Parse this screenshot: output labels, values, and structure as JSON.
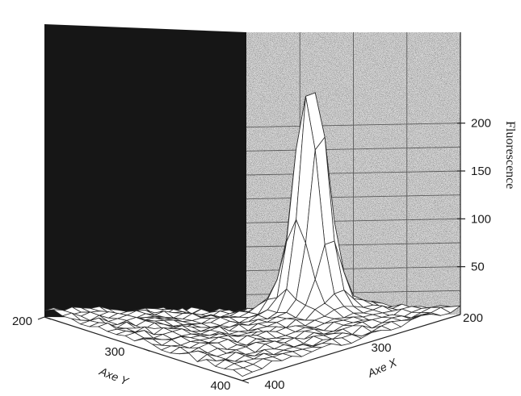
{
  "chart_data": {
    "type": "surface3d",
    "xlabel": "Axe X",
    "ylabel": "Axe Y",
    "zlabel": "Fluorescence",
    "x_ticks": [
      "200",
      "300",
      "400"
    ],
    "y_ticks": [
      "200",
      "300",
      "400"
    ],
    "z_ticks": [
      "50",
      "100",
      "150",
      "200"
    ],
    "xlim": [
      200,
      400
    ],
    "ylim": [
      200,
      400
    ],
    "zlim": [
      0,
      220
    ],
    "grid": true,
    "peak": {
      "x": 300,
      "y": 240,
      "height": 235,
      "background": 8
    },
    "colors": {
      "back_wall_left": "#161616",
      "back_wall_right": "#d9d9d9",
      "mesh_line": "#2b2b2b",
      "mesh_face": "#ffffff"
    }
  }
}
